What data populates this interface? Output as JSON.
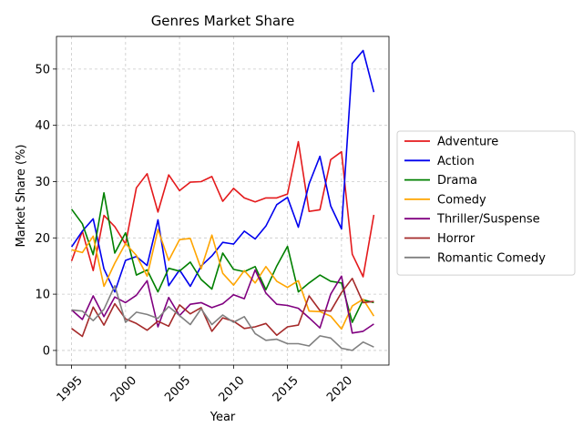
{
  "chart_data": {
    "type": "line",
    "title": "Genres Market Share",
    "xlabel": "Year",
    "ylabel": "Market Share (%)",
    "xlim": [
      1993.6,
      2024.4
    ],
    "ylim": [
      -2.6,
      55.8
    ],
    "xticks": [
      1995,
      2000,
      2005,
      2010,
      2015,
      2020
    ],
    "yticks": [
      0,
      10,
      20,
      30,
      40,
      50
    ],
    "grid": true,
    "legend": "right",
    "x": [
      1995,
      1996,
      1997,
      1998,
      1999,
      2000,
      2001,
      2002,
      2003,
      2004,
      2005,
      2006,
      2007,
      2008,
      2009,
      2010,
      2011,
      2012,
      2013,
      2014,
      2015,
      2016,
      2017,
      2018,
      2019,
      2020,
      2021,
      2022,
      2023
    ],
    "series": [
      {
        "name": "Adventure",
        "color": "#e41a1c",
        "values": [
          15.9,
          21.2,
          14.2,
          24.0,
          22.0,
          18.9,
          28.9,
          31.4,
          24.6,
          31.2,
          28.4,
          29.9,
          30.0,
          30.9,
          26.5,
          28.8,
          27.1,
          26.4,
          27.1,
          27.1,
          27.8,
          37.1,
          24.7,
          25.0,
          33.9,
          35.3,
          17.1,
          13.1,
          24.1
        ]
      },
      {
        "name": "Action",
        "color": "#0000ee",
        "values": [
          18.4,
          21.2,
          23.4,
          14.5,
          10.4,
          16.0,
          16.7,
          15.1,
          23.2,
          11.5,
          14.3,
          11.4,
          15.0,
          16.8,
          19.2,
          18.9,
          21.2,
          19.8,
          22.1,
          25.9,
          27.2,
          21.9,
          29.6,
          34.5,
          25.7,
          21.6,
          51.0,
          53.3,
          45.9
        ]
      },
      {
        "name": "Drama",
        "color": "#008000",
        "values": [
          25.1,
          22.5,
          17.0,
          28.0,
          17.3,
          20.9,
          13.4,
          14.3,
          10.4,
          14.6,
          14.1,
          15.7,
          12.6,
          10.9,
          17.3,
          14.4,
          14.0,
          14.9,
          10.8,
          15.0,
          18.5,
          10.4,
          12.0,
          13.4,
          12.3,
          12.0,
          5.0,
          9.0,
          8.5
        ]
      },
      {
        "name": "Comedy",
        "color": "#ffa500",
        "values": [
          17.9,
          17.4,
          20.3,
          11.4,
          15.5,
          19.0,
          16.9,
          13.2,
          21.5,
          16.0,
          19.7,
          19.9,
          14.5,
          20.5,
          13.7,
          11.6,
          14.2,
          12.0,
          14.9,
          12.3,
          11.2,
          12.4,
          7.0,
          6.9,
          6.1,
          3.8,
          7.9,
          9.1,
          6.1
        ]
      },
      {
        "name": "Thriller/Suspense",
        "color": "#800080",
        "values": [
          7.2,
          5.5,
          9.7,
          6.0,
          9.5,
          8.5,
          9.8,
          12.4,
          4.2,
          9.4,
          6.2,
          8.2,
          8.5,
          7.6,
          8.3,
          9.9,
          9.2,
          14.3,
          10.2,
          8.2,
          8.0,
          7.5,
          5.8,
          4.0,
          10.0,
          13.2,
          3.1,
          3.4,
          4.7
        ]
      },
      {
        "name": "Horror",
        "color": "#a52a2a",
        "values": [
          3.9,
          2.5,
          7.7,
          4.5,
          8.3,
          5.6,
          4.8,
          3.6,
          5.2,
          4.3,
          8.1,
          6.5,
          7.6,
          3.4,
          5.8,
          5.2,
          3.9,
          4.2,
          4.8,
          2.7,
          4.2,
          4.5,
          9.7,
          7.1,
          7.0,
          10.3,
          12.8,
          8.5,
          8.7
        ]
      },
      {
        "name": "Romantic Comedy",
        "color": "#808080",
        "values": [
          7.2,
          7.0,
          5.3,
          7.3,
          11.5,
          5.0,
          6.8,
          6.4,
          5.7,
          7.8,
          6.2,
          4.6,
          7.4,
          4.6,
          6.3,
          5.0,
          6.0,
          3.0,
          1.8,
          2.0,
          1.2,
          1.2,
          0.8,
          2.6,
          2.2,
          0.4,
          0.0,
          1.5,
          0.6
        ]
      }
    ]
  }
}
